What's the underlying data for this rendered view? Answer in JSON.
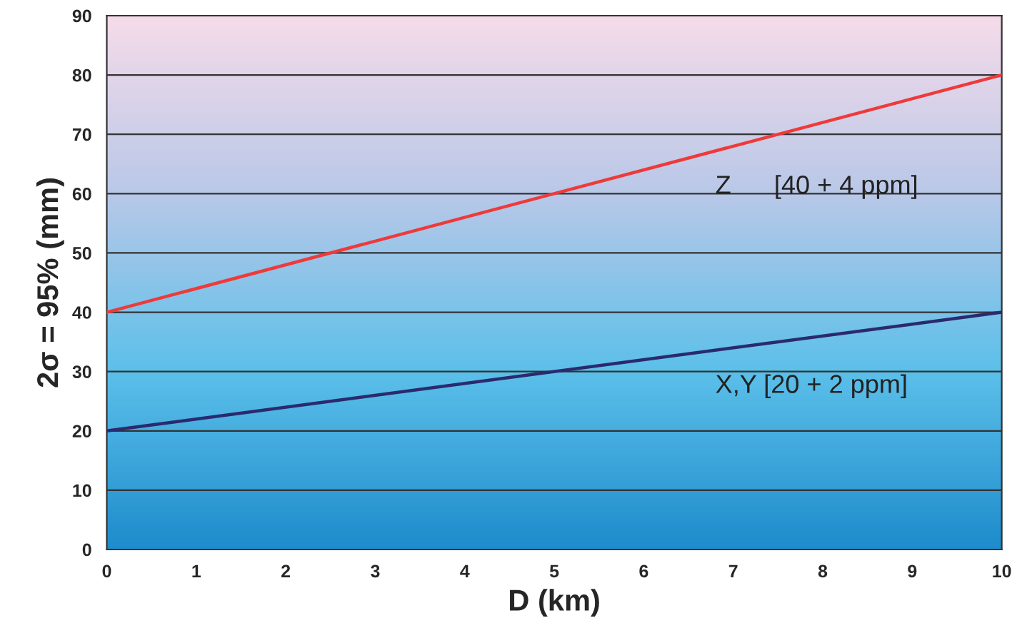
{
  "chart_data": {
    "type": "line",
    "xlabel": "D (km)",
    "ylabel": "2σ = 95% (mm)",
    "x": [
      0,
      10
    ],
    "series": [
      {
        "name": "Z      [40 + 4 ppm]",
        "color": "#ee3a3a",
        "values": [
          40,
          80
        ]
      },
      {
        "name": "X,Y [20 + 2 ppm]",
        "color": "#2a2a6e",
        "values": [
          20,
          40
        ]
      }
    ],
    "xlim": [
      0,
      10
    ],
    "ylim": [
      0,
      90
    ],
    "xticks": [
      0,
      1,
      2,
      3,
      4,
      5,
      6,
      7,
      8,
      9,
      10
    ],
    "yticks": [
      0,
      10,
      20,
      30,
      40,
      50,
      60,
      70,
      80,
      90
    ],
    "grid": "y",
    "legend": false,
    "marker": "none",
    "line_style": "solid"
  }
}
